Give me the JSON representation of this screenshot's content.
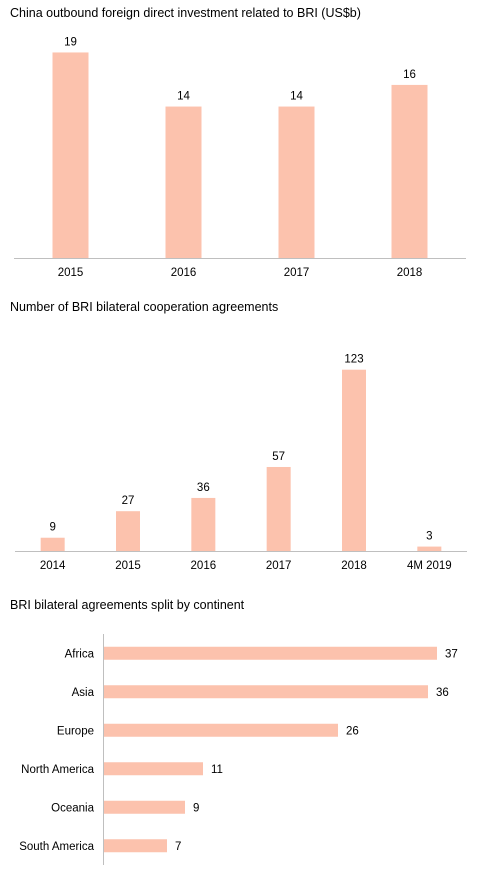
{
  "colors": {
    "bar": "#fcc2ad",
    "axis": "#bfbfbf",
    "text": "#000000"
  },
  "chart_data": [
    {
      "type": "bar",
      "orientation": "vertical",
      "title": "China outbound foreign direct investment related to BRI (US$b)",
      "categories": [
        "2015",
        "2016",
        "2017",
        "2018"
      ],
      "values": [
        19,
        14,
        14,
        16
      ],
      "data_labels": true,
      "ylim": [
        0,
        22
      ],
      "grid": false,
      "legend": "none"
    },
    {
      "type": "bar",
      "orientation": "vertical",
      "title": "Number of BRI bilateral cooperation agreements",
      "categories": [
        "2014",
        "2015",
        "2016",
        "2017",
        "2018",
        "4M 2019"
      ],
      "values": [
        9,
        27,
        36,
        57,
        123,
        3
      ],
      "data_labels": true,
      "ylim": [
        0,
        135
      ],
      "grid": false,
      "legend": "none"
    },
    {
      "type": "bar",
      "orientation": "horizontal",
      "title": "BRI bilateral agreements split by continent",
      "categories": [
        "Africa",
        "Asia",
        "Europe",
        "North America",
        "Oceania",
        "South America"
      ],
      "values": [
        37,
        36,
        26,
        11,
        9,
        7
      ],
      "data_labels": true,
      "xlim": [
        0,
        38
      ],
      "grid": false,
      "legend": "none"
    }
  ]
}
